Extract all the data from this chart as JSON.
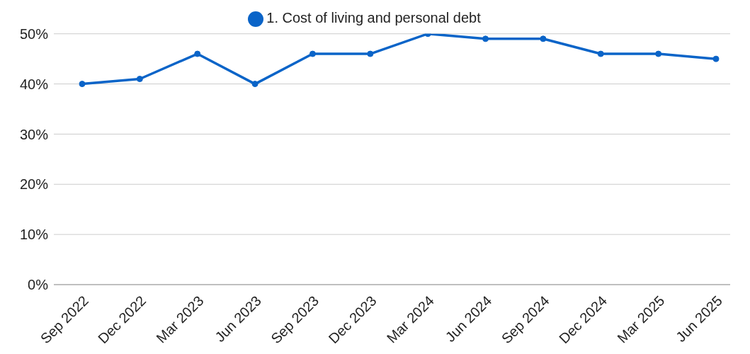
{
  "chart_data": {
    "type": "line",
    "categories": [
      "Sep 2022",
      "Dec 2022",
      "Mar 2023",
      "Jun 2023",
      "Sep 2023",
      "Dec 2023",
      "Mar 2024",
      "Jun 2024",
      "Sep 2024",
      "Dec 2024",
      "Mar 2025",
      "Jun 2025"
    ],
    "series": [
      {
        "name": "1. Cost of living and personal debt",
        "color": "#0a64c8",
        "values": [
          40,
          41,
          46,
          40,
          46,
          46,
          50,
          49,
          49,
          46,
          46,
          45
        ]
      }
    ],
    "ylim": [
      0,
      50
    ],
    "yticks": [
      {
        "value": 0,
        "label": "0%"
      },
      {
        "value": 10,
        "label": "10%"
      },
      {
        "value": 20,
        "label": "20%"
      },
      {
        "value": 30,
        "label": "30%"
      },
      {
        "value": 40,
        "label": "40%"
      },
      {
        "value": 50,
        "label": "50%"
      }
    ],
    "grid": "y",
    "legend": "top",
    "marker": "circle",
    "line_style": "solid"
  }
}
